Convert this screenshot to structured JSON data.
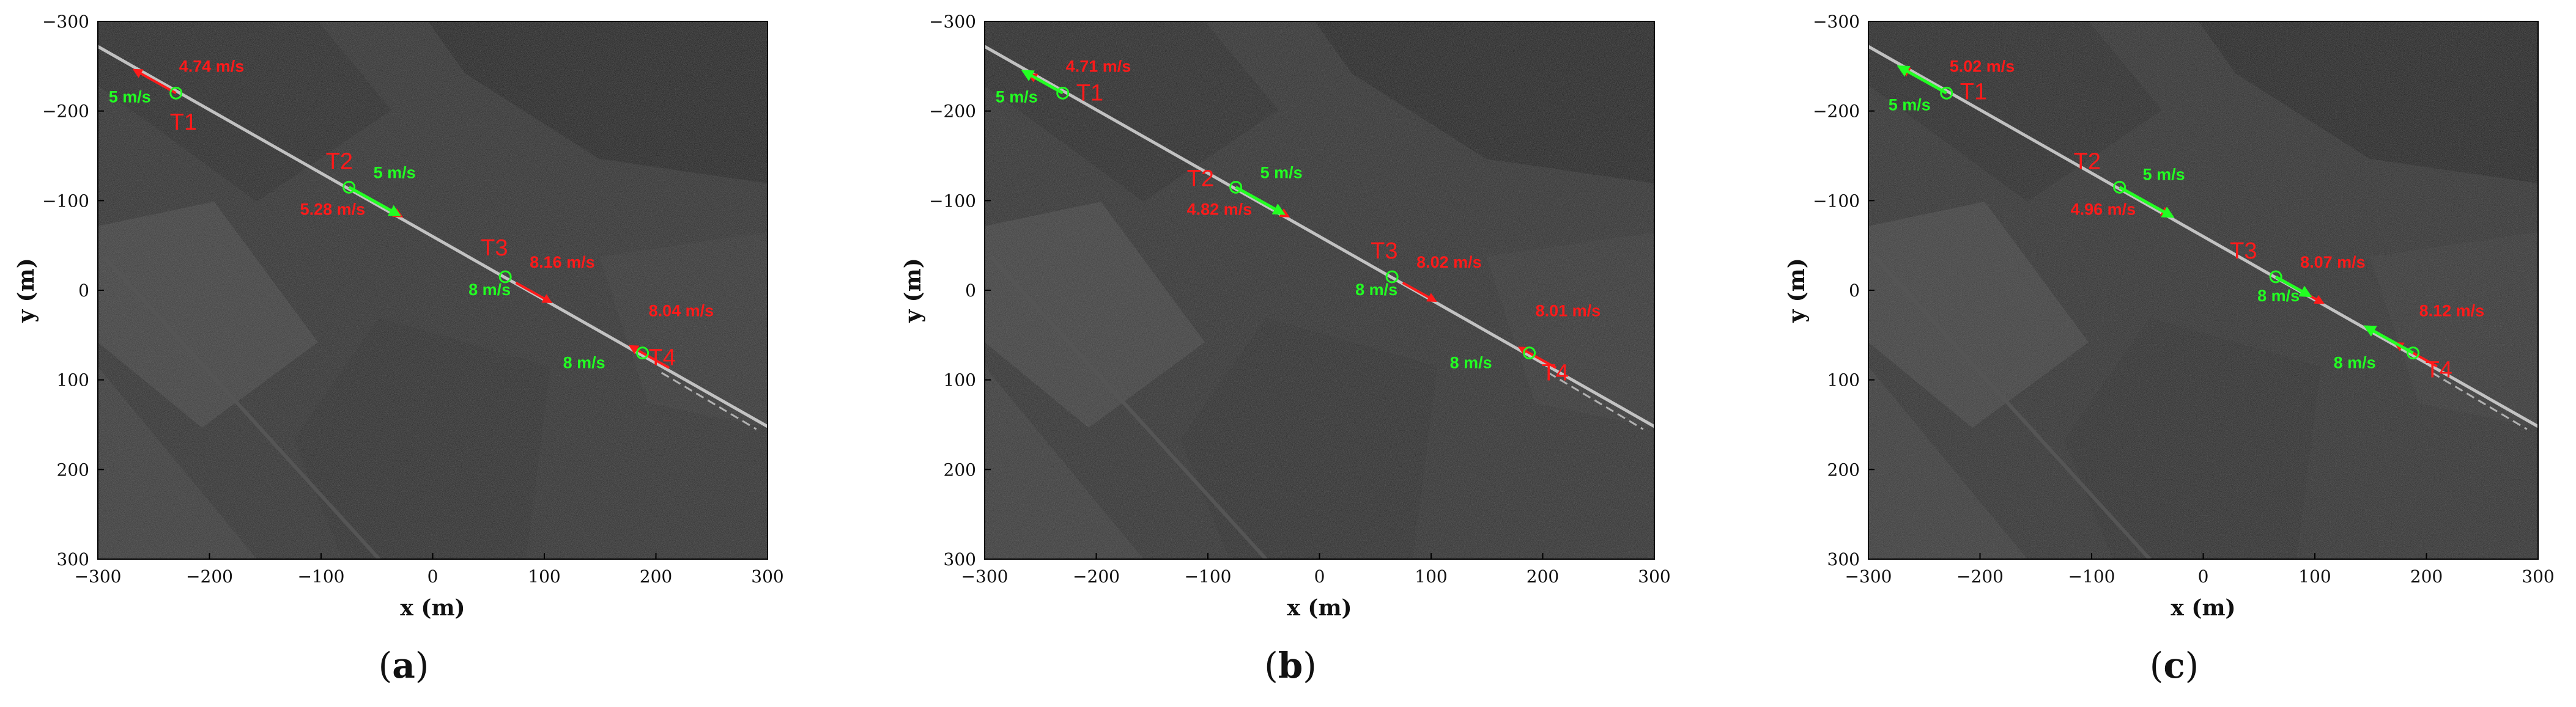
{
  "axis": {
    "xlabel": "x (m)",
    "ylabel": "y (m)",
    "xlim": [
      -300,
      300
    ],
    "ylim": [
      -300,
      300
    ],
    "x_ticks": [
      "−300",
      "−200",
      "−100",
      "0",
      "100",
      "200",
      "300"
    ],
    "y_ticks": [
      "−300",
      "−200",
      "−100",
      "0",
      "100",
      "200",
      "300"
    ],
    "y_reversed": true
  },
  "colors": {
    "measured_arrow": "#ff1a1a",
    "true_arrow": "#22ff22",
    "target_circle": "#22ff22",
    "road": "#d8d8d8"
  },
  "targets": [
    "T1",
    "T2",
    "T3",
    "T4"
  ],
  "true_speeds": [
    "5 m/s",
    "5 m/s",
    "8 m/s",
    "8 m/s"
  ],
  "panels": [
    {
      "label": "a",
      "measured_speeds": [
        "4.74 m/s",
        "5.28 m/s",
        "8.16 m/s",
        "8.04 m/s"
      ]
    },
    {
      "label": "b",
      "measured_speeds": [
        "4.71 m/s",
        "4.82 m/s",
        "8.02 m/s",
        "8.01 m/s"
      ]
    },
    {
      "label": "c",
      "measured_speeds": [
        "5.02 m/s",
        "4.96 m/s",
        "8.07 m/s",
        "8.12 m/s"
      ]
    }
  ]
}
